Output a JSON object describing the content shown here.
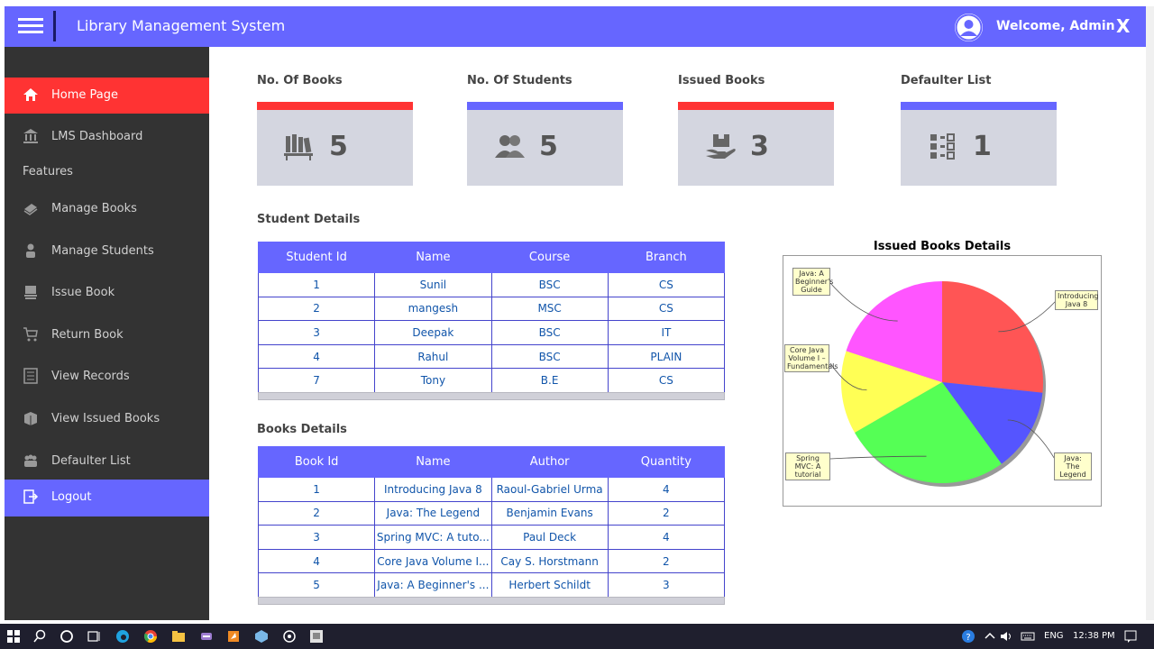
{
  "header": {
    "title": "Library Management System",
    "welcome": "Welcome, Admin",
    "close_label": "X",
    "color": "#6666ff"
  },
  "sidebar": {
    "items": [
      {
        "label": "Home Page",
        "icon": "home-icon"
      },
      {
        "label": "LMS Dashboard",
        "icon": "bank-icon"
      },
      {
        "label": "Manage Books",
        "icon": "book-icon"
      },
      {
        "label": "Manage Students",
        "icon": "user-icon"
      },
      {
        "label": "Issue Book",
        "icon": "book-stack-icon"
      },
      {
        "label": "Return Book",
        "icon": "cart-icon"
      },
      {
        "label": "View Records",
        "icon": "records-icon"
      },
      {
        "label": "View Issued Books",
        "icon": "books-icon"
      },
      {
        "label": "Defaulter List",
        "icon": "group-icon"
      },
      {
        "label": "Logout",
        "icon": "logout-icon"
      }
    ],
    "features_label": "Features",
    "active_color": "#ff3333",
    "logout_color": "#6666ff"
  },
  "stats": [
    {
      "title": "No. Of Books",
      "value": "5",
      "bar_color": "#ff3333",
      "icon": "books-shelf-icon"
    },
    {
      "title": "No. Of Students",
      "value": "5",
      "bar_color": "#6666ff",
      "icon": "people-icon"
    },
    {
      "title": "Issued Books",
      "value": "3",
      "bar_color": "#ff3333",
      "icon": "hand-box-icon"
    },
    {
      "title": "Defaulter List",
      "value": "1",
      "bar_color": "#6666ff",
      "icon": "checklist-icon"
    }
  ],
  "student_details": {
    "title": "Student Details",
    "headers": [
      "Student Id",
      "Name",
      "Course",
      "Branch"
    ],
    "rows": [
      [
        "1",
        "Sunil",
        "BSC",
        "CS"
      ],
      [
        "2",
        "mangesh",
        "MSC",
        "CS"
      ],
      [
        "3",
        "Deepak",
        "BSC",
        "IT"
      ],
      [
        "4",
        "Rahul",
        "BSC",
        "PLAIN"
      ],
      [
        "7",
        "Tony",
        "B.E",
        "CS"
      ]
    ]
  },
  "books_details": {
    "title": "Books Details",
    "headers": [
      "Book Id",
      "Name",
      "Author",
      "Quantity"
    ],
    "rows": [
      [
        "1",
        "Introducing Java 8",
        "Raoul-Gabriel Urma",
        "4"
      ],
      [
        "2",
        "Java: The Legend",
        "Benjamin Evans",
        "2"
      ],
      [
        "3",
        "Spring MVC: A tuto...",
        "Paul Deck",
        "4"
      ],
      [
        "4",
        "Core Java Volume I...",
        "Cay S. Horstmann",
        "2"
      ],
      [
        "5",
        "Java: A Beginner's ...",
        "Herbert Schildt",
        "3"
      ]
    ]
  },
  "chart_data": {
    "type": "pie",
    "title": "Issued Books Details",
    "slices": [
      {
        "label": "Introducing Java 8",
        "value": 4,
        "color": "#ff5555"
      },
      {
        "label": "Java: The Legend",
        "value": 2,
        "color": "#5555ff"
      },
      {
        "label": "Spring MVC: A tutorial",
        "value": 4,
        "color": "#55ff55"
      },
      {
        "label": "Core Java Volume I – Fundamentals",
        "value": 2,
        "color": "#ffff55"
      },
      {
        "label": "Java: A Beginner's Guide",
        "value": 3,
        "color": "#ff55ff"
      }
    ]
  },
  "taskbar": {
    "lang": "ENG",
    "time": "12:38 PM"
  }
}
